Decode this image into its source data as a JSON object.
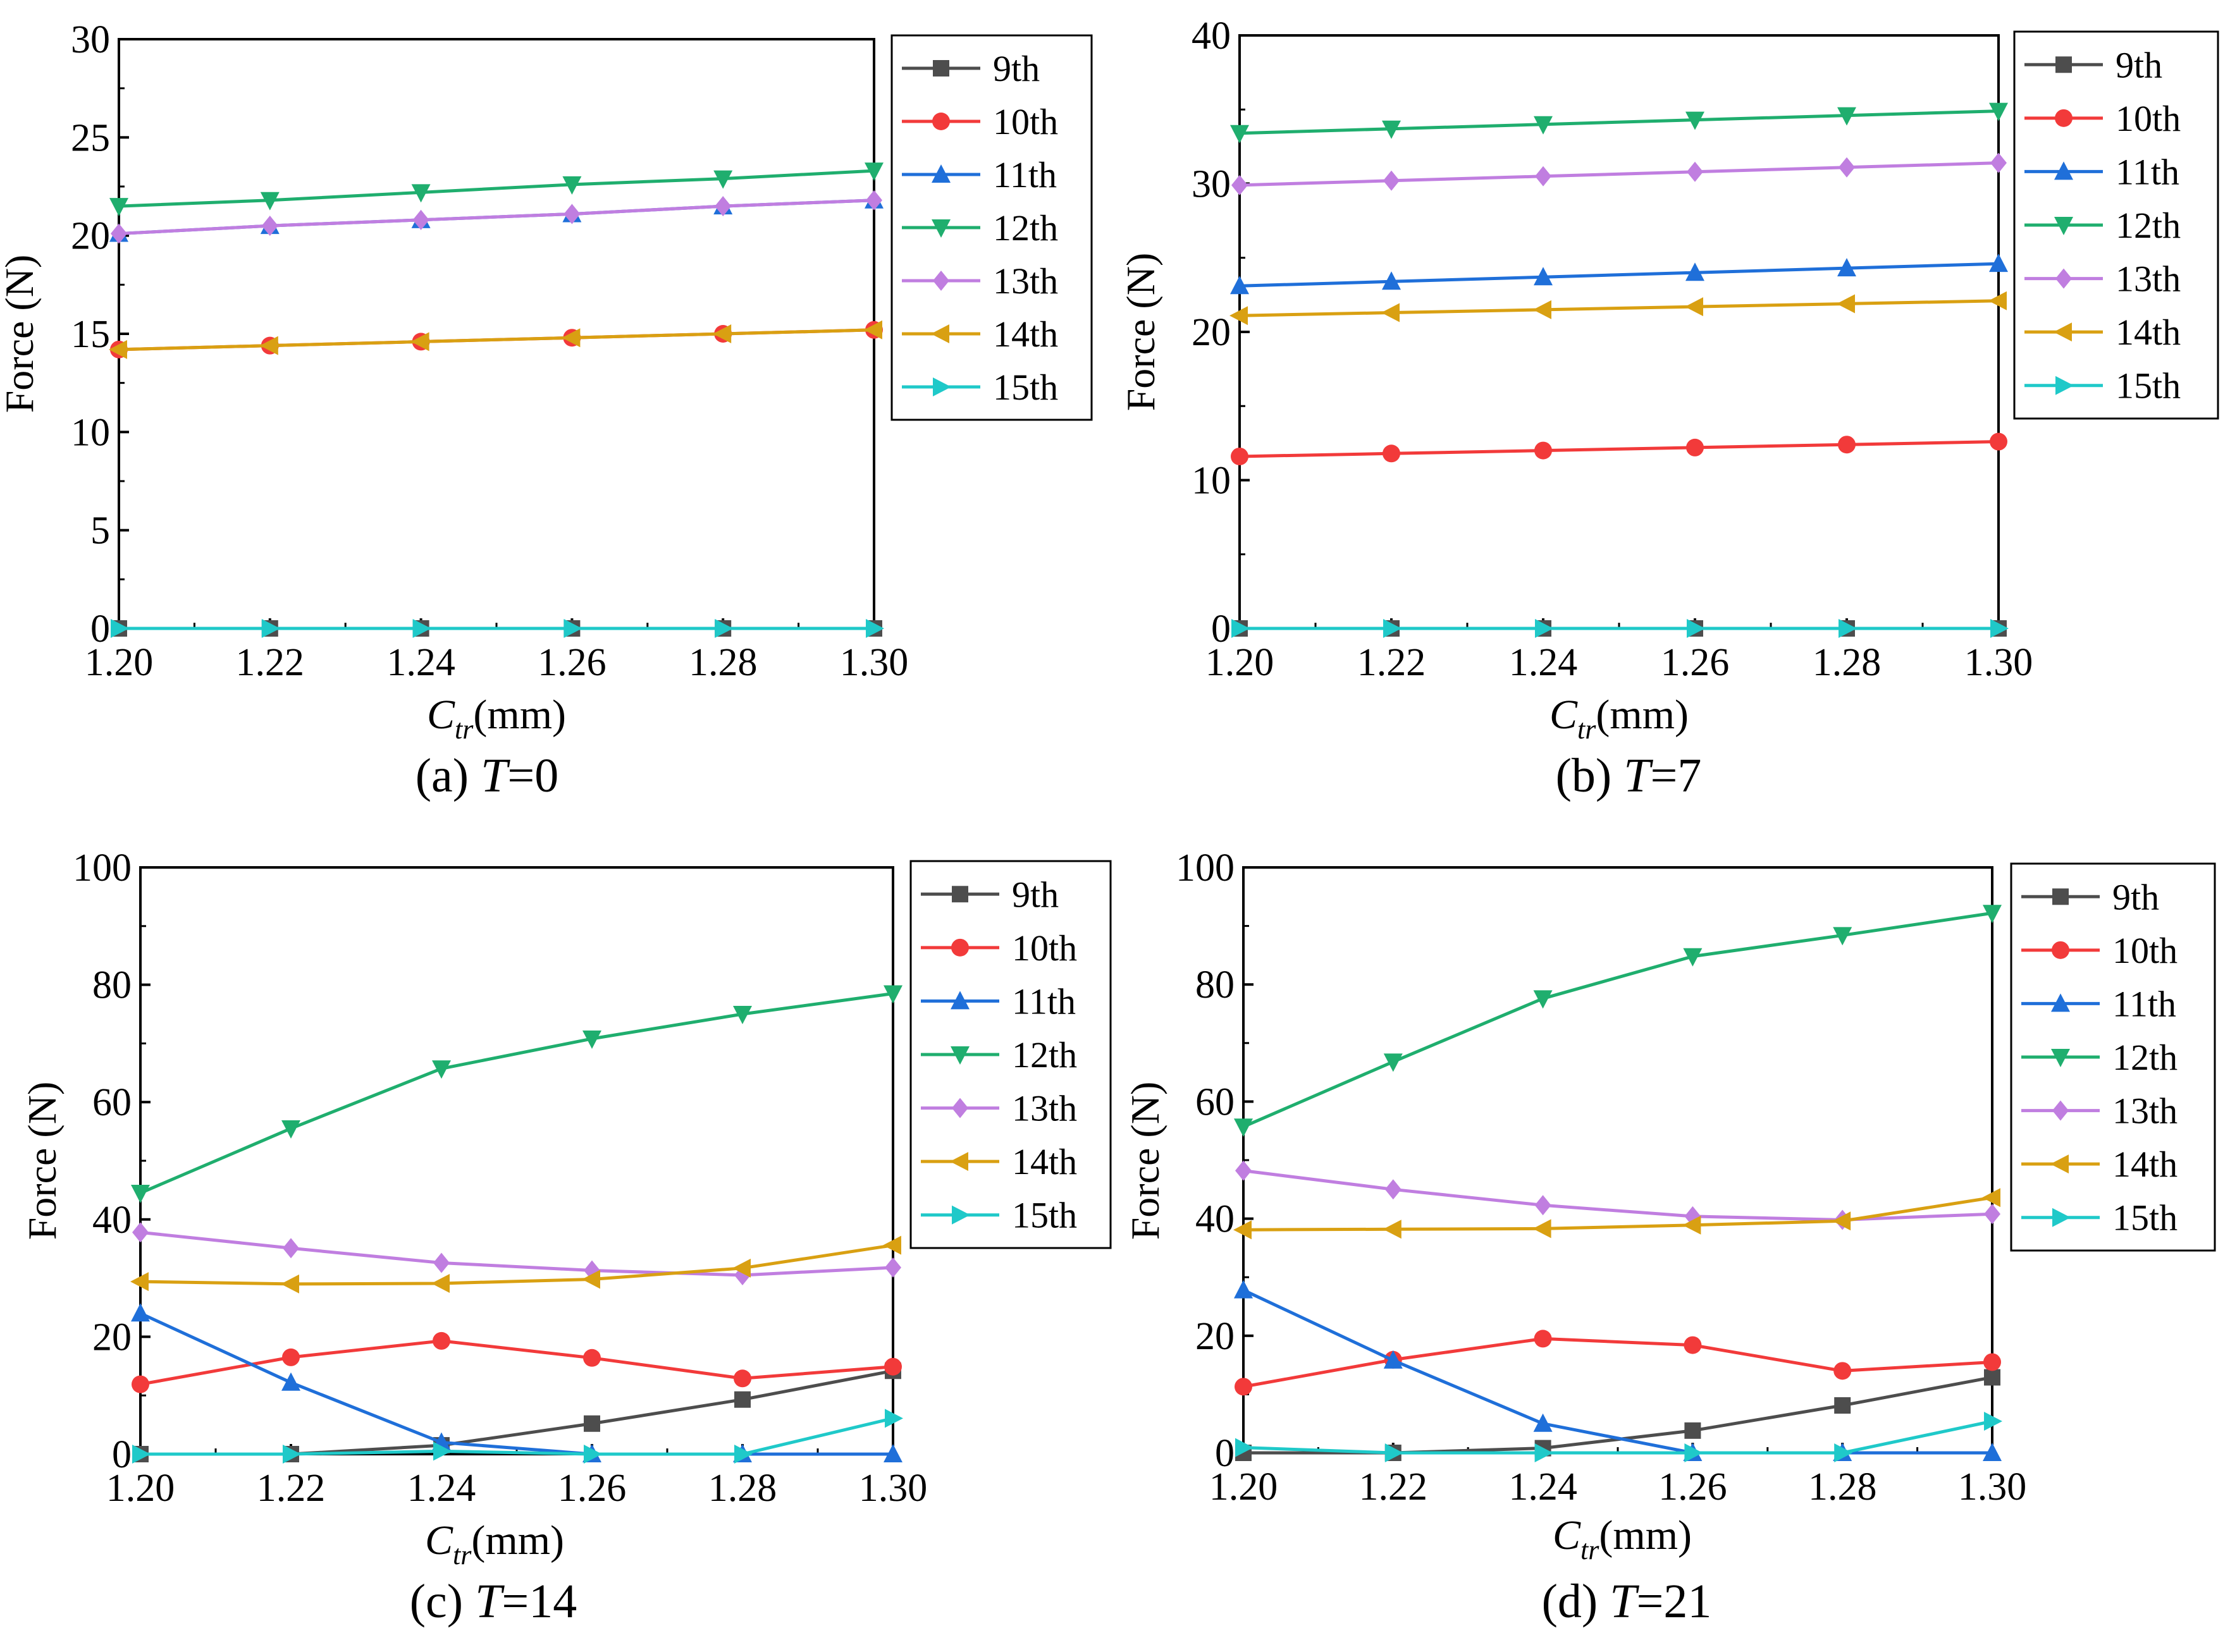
{
  "colors": {
    "9th": "#4d4d4d",
    "10th": "#f23a3a",
    "11th": "#1f6fd9",
    "12th": "#1fae6e",
    "13th": "#c07ee0",
    "14th": "#d9a012",
    "15th": "#1fc9c9"
  },
  "chart_data": [
    {
      "type": "line",
      "caption": "(a)",
      "caption_var": "T",
      "caption_val": "=0",
      "xlabel_main": "C",
      "xlabel_sub": "tr",
      "xlabel_unit": "(mm)",
      "ylabel": "Force (N)",
      "x": [
        1.2,
        1.22,
        1.24,
        1.26,
        1.28,
        1.3
      ],
      "xticks": [
        "1.20",
        "1.22",
        "1.24",
        "1.26",
        "1.28",
        "1.30"
      ],
      "ylim": [
        0,
        30
      ],
      "yticks": [
        0,
        5,
        10,
        15,
        20,
        25,
        30
      ],
      "series": [
        {
          "name": "9th",
          "marker": "square",
          "values": [
            0,
            0,
            0,
            0,
            0,
            0
          ]
        },
        {
          "name": "10th",
          "marker": "circle",
          "values": [
            14.2,
            14.4,
            14.6,
            14.8,
            15.0,
            15.2
          ]
        },
        {
          "name": "11th",
          "marker": "triangle",
          "values": [
            20.1,
            20.5,
            20.8,
            21.1,
            21.5,
            21.8
          ]
        },
        {
          "name": "12th",
          "marker": "tri-down",
          "values": [
            21.5,
            21.8,
            22.2,
            22.6,
            22.9,
            23.3
          ]
        },
        {
          "name": "13th",
          "marker": "diamond",
          "values": [
            20.1,
            20.5,
            20.8,
            21.1,
            21.5,
            21.8
          ]
        },
        {
          "name": "14th",
          "marker": "tri-left",
          "values": [
            14.2,
            14.4,
            14.6,
            14.8,
            15.0,
            15.2
          ]
        },
        {
          "name": "15th",
          "marker": "tri-right",
          "values": [
            0,
            0,
            0,
            0,
            0,
            0
          ]
        }
      ]
    },
    {
      "type": "line",
      "caption": "(b)",
      "caption_var": "T",
      "caption_val": "=7",
      "xlabel_main": "C",
      "xlabel_sub": "tr",
      "xlabel_unit": "(mm)",
      "ylabel": "Force (N)",
      "x": [
        1.2,
        1.22,
        1.24,
        1.26,
        1.28,
        1.3
      ],
      "xticks": [
        "1.20",
        "1.22",
        "1.24",
        "1.26",
        "1.28",
        "1.30"
      ],
      "ylim": [
        0,
        40
      ],
      "yticks": [
        0,
        10,
        20,
        30,
        40
      ],
      "series": [
        {
          "name": "9th",
          "marker": "square",
          "values": [
            0,
            0,
            0,
            0,
            0,
            0
          ]
        },
        {
          "name": "10th",
          "marker": "circle",
          "values": [
            11.6,
            11.8,
            12.0,
            12.2,
            12.4,
            12.6
          ]
        },
        {
          "name": "11th",
          "marker": "triangle",
          "values": [
            23.1,
            23.4,
            23.7,
            24.0,
            24.3,
            24.6
          ]
        },
        {
          "name": "12th",
          "marker": "tri-down",
          "values": [
            33.4,
            33.7,
            34.0,
            34.3,
            34.6,
            34.9
          ]
        },
        {
          "name": "13th",
          "marker": "diamond",
          "values": [
            29.9,
            30.2,
            30.5,
            30.8,
            31.1,
            31.4
          ]
        },
        {
          "name": "14th",
          "marker": "tri-left",
          "values": [
            21.1,
            21.3,
            21.5,
            21.7,
            21.9,
            22.1
          ]
        },
        {
          "name": "15th",
          "marker": "tri-right",
          "values": [
            0,
            0,
            0,
            0,
            0,
            0
          ]
        }
      ]
    },
    {
      "type": "line",
      "caption": "(c)",
      "caption_var": "T",
      "caption_val": "=14",
      "xlabel_main": "C",
      "xlabel_sub": "tr",
      "xlabel_unit": "(mm)",
      "ylabel": "Force (N)",
      "x": [
        1.2,
        1.22,
        1.24,
        1.26,
        1.28,
        1.3
      ],
      "xticks": [
        "1.20",
        "1.22",
        "1.24",
        "1.26",
        "1.28",
        "1.30"
      ],
      "ylim": [
        0,
        100
      ],
      "yticks": [
        0,
        20,
        40,
        60,
        80,
        100
      ],
      "series": [
        {
          "name": "9th",
          "marker": "square",
          "values": [
            0,
            0,
            1.5,
            5.2,
            9.3,
            14.2
          ]
        },
        {
          "name": "10th",
          "marker": "circle",
          "values": [
            11.9,
            16.5,
            19.3,
            16.4,
            12.9,
            14.9
          ]
        },
        {
          "name": "11th",
          "marker": "triangle",
          "values": [
            24.0,
            12.2,
            2.0,
            0,
            0,
            0
          ]
        },
        {
          "name": "12th",
          "marker": "tri-down",
          "values": [
            44.5,
            55.5,
            65.7,
            70.8,
            75.0,
            78.5
          ]
        },
        {
          "name": "13th",
          "marker": "diamond",
          "values": [
            37.8,
            35.1,
            32.6,
            31.3,
            30.5,
            31.8
          ]
        },
        {
          "name": "14th",
          "marker": "tri-left",
          "values": [
            29.4,
            29.0,
            29.1,
            29.8,
            31.7,
            35.6
          ]
        },
        {
          "name": "15th",
          "marker": "tri-right",
          "values": [
            0,
            0,
            0.5,
            0,
            0,
            6.1
          ]
        }
      ]
    },
    {
      "type": "line",
      "caption": "(d)",
      "caption_var": "T",
      "caption_val": "=21",
      "xlabel_main": "C",
      "xlabel_sub": "tr",
      "xlabel_unit": "(mm)",
      "ylabel": "Force (N)",
      "x": [
        1.2,
        1.22,
        1.24,
        1.26,
        1.28,
        1.3
      ],
      "xticks": [
        "1.20",
        "1.22",
        "1.24",
        "1.26",
        "1.28",
        "1.30"
      ],
      "ylim": [
        0,
        100
      ],
      "yticks": [
        0,
        20,
        40,
        60,
        80,
        100
      ],
      "series": [
        {
          "name": "9th",
          "marker": "square",
          "values": [
            0,
            0,
            0.8,
            3.8,
            8.1,
            12.9
          ]
        },
        {
          "name": "10th",
          "marker": "circle",
          "values": [
            11.3,
            15.9,
            19.5,
            18.4,
            14.0,
            15.5
          ]
        },
        {
          "name": "11th",
          "marker": "triangle",
          "values": [
            27.8,
            15.8,
            5.0,
            0,
            0,
            0
          ]
        },
        {
          "name": "12th",
          "marker": "tri-down",
          "values": [
            55.7,
            66.8,
            77.6,
            84.8,
            88.4,
            92.2
          ]
        },
        {
          "name": "13th",
          "marker": "diamond",
          "values": [
            48.2,
            45.0,
            42.3,
            40.4,
            39.8,
            40.8
          ]
        },
        {
          "name": "14th",
          "marker": "tri-left",
          "values": [
            38.1,
            38.2,
            38.3,
            38.9,
            39.6,
            43.6
          ]
        },
        {
          "name": "15th",
          "marker": "tri-right",
          "values": [
            0.9,
            0,
            0,
            0,
            0,
            5.4
          ]
        }
      ]
    }
  ]
}
